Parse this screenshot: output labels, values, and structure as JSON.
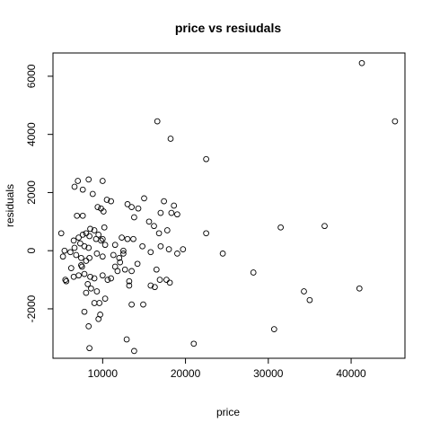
{
  "chart_data": {
    "type": "scatter",
    "title": "price  vs resiudals",
    "xlabel": "price",
    "ylabel": "residuals",
    "xlim": [
      4000,
      46500
    ],
    "ylim": [
      -3700,
      6800
    ],
    "grid": false,
    "x_ticks": [
      10000,
      20000,
      30000,
      40000
    ],
    "x_tick_labels": [
      "10000",
      "20000",
      "30000",
      "40000"
    ],
    "y_ticks": [
      -2000,
      0,
      2000,
      4000,
      6000
    ],
    "y_tick_labels": [
      "-2000",
      "0",
      "2000",
      "4000",
      "6000"
    ],
    "points": [
      [
        41300,
        6450
      ],
      [
        45300,
        4450
      ],
      [
        16600,
        4450
      ],
      [
        18200,
        3850
      ],
      [
        22500,
        3150
      ],
      [
        36800,
        850
      ],
      [
        31500,
        800
      ],
      [
        24500,
        -100
      ],
      [
        28200,
        -750
      ],
      [
        34300,
        -1400
      ],
      [
        35000,
        -1700
      ],
      [
        41000,
        -1300
      ],
      [
        30700,
        -2700
      ],
      [
        21000,
        -3200
      ],
      [
        7000,
        2400
      ],
      [
        8300,
        2450
      ],
      [
        10000,
        2400
      ],
      [
        6600,
        2200
      ],
      [
        7600,
        2100
      ],
      [
        8800,
        1950
      ],
      [
        10500,
        1750
      ],
      [
        11000,
        1700
      ],
      [
        15000,
        1800
      ],
      [
        13000,
        1600
      ],
      [
        13500,
        1500
      ],
      [
        14300,
        1450
      ],
      [
        17400,
        1700
      ],
      [
        18600,
        1550
      ],
      [
        17000,
        1300
      ],
      [
        18300,
        1300
      ],
      [
        19000,
        1250
      ],
      [
        10100,
        1350
      ],
      [
        9800,
        1450
      ],
      [
        9400,
        1500
      ],
      [
        13800,
        1150
      ],
      [
        6900,
        1200
      ],
      [
        7600,
        1200
      ],
      [
        15600,
        1000
      ],
      [
        16200,
        850
      ],
      [
        16800,
        600
      ],
      [
        17800,
        700
      ],
      [
        22500,
        600
      ],
      [
        8500,
        750
      ],
      [
        9000,
        700
      ],
      [
        9500,
        550
      ],
      [
        10200,
        800
      ],
      [
        11500,
        200
      ],
      [
        12300,
        450
      ],
      [
        13000,
        400
      ],
      [
        13700,
        400
      ],
      [
        14800,
        150
      ],
      [
        17000,
        150
      ],
      [
        18000,
        50
      ],
      [
        19700,
        50
      ],
      [
        5000,
        600
      ],
      [
        6500,
        350
      ],
      [
        7100,
        450
      ],
      [
        7600,
        550
      ],
      [
        8000,
        600
      ],
      [
        8400,
        500
      ],
      [
        9200,
        400
      ],
      [
        9800,
        350
      ],
      [
        10300,
        200
      ],
      [
        10000,
        400
      ],
      [
        7300,
        250
      ],
      [
        7800,
        150
      ],
      [
        8300,
        100
      ],
      [
        6600,
        100
      ],
      [
        5400,
        0
      ],
      [
        6100,
        -50
      ],
      [
        6800,
        -150
      ],
      [
        7400,
        -250
      ],
      [
        8000,
        -350
      ],
      [
        5200,
        -200
      ],
      [
        7500,
        -550
      ],
      [
        8400,
        -250
      ],
      [
        9300,
        -100
      ],
      [
        10000,
        -200
      ],
      [
        11300,
        -150
      ],
      [
        12500,
        -100
      ],
      [
        12100,
        -400
      ],
      [
        11500,
        -550
      ],
      [
        11800,
        -700
      ],
      [
        12700,
        -650
      ],
      [
        13500,
        -700
      ],
      [
        13200,
        -1050
      ],
      [
        14200,
        -450
      ],
      [
        15800,
        -50
      ],
      [
        16500,
        -650
      ],
      [
        16900,
        -1000
      ],
      [
        17700,
        -1000
      ],
      [
        18100,
        -1100
      ],
      [
        19000,
        -100
      ],
      [
        5500,
        -1000
      ],
      [
        5600,
        -1050
      ],
      [
        6500,
        -900
      ],
      [
        7100,
        -850
      ],
      [
        7800,
        -800
      ],
      [
        8500,
        -900
      ],
      [
        9000,
        -950
      ],
      [
        10000,
        -850
      ],
      [
        11000,
        -950
      ],
      [
        6200,
        -600
      ],
      [
        7400,
        -500
      ],
      [
        8200,
        -1150
      ],
      [
        8600,
        -1300
      ],
      [
        9300,
        -1400
      ],
      [
        10300,
        -1650
      ],
      [
        9600,
        -1800
      ],
      [
        9000,
        -1800
      ],
      [
        8000,
        -1450
      ],
      [
        7800,
        -2100
      ],
      [
        9700,
        -2200
      ],
      [
        9500,
        -2350
      ],
      [
        13200,
        -1200
      ],
      [
        15800,
        -1200
      ],
      [
        16300,
        -1250
      ],
      [
        13500,
        -1850
      ],
      [
        14900,
        -1850
      ],
      [
        8300,
        -2600
      ],
      [
        8400,
        -3350
      ],
      [
        12900,
        -3050
      ],
      [
        13800,
        -3450
      ],
      [
        12500,
        0
      ],
      [
        12000,
        -250
      ],
      [
        10600,
        -1000
      ]
    ]
  }
}
